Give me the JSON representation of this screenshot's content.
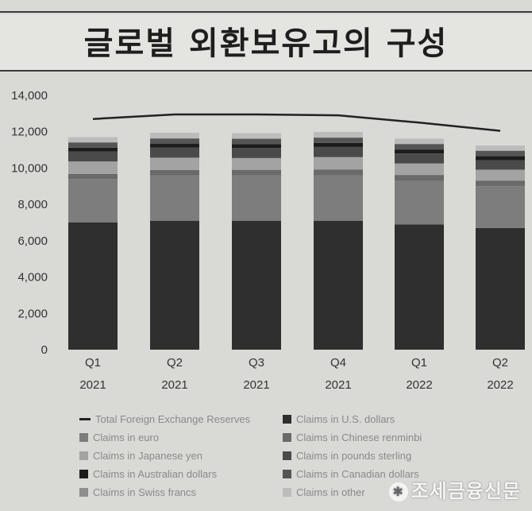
{
  "title": "글로벌 외환보유고의 구성",
  "watermark": "조세금융신문",
  "chart_data": {
    "type": "bar",
    "stacked": true,
    "categories": [
      {
        "quarter": "Q1",
        "year": "2021"
      },
      {
        "quarter": "Q2",
        "year": "2021"
      },
      {
        "quarter": "Q3",
        "year": "2021"
      },
      {
        "quarter": "Q4",
        "year": "2021"
      },
      {
        "quarter": "Q1",
        "year": "2022"
      },
      {
        "quarter": "Q2",
        "year": "2022"
      }
    ],
    "yticks": [
      "0",
      "2,000",
      "4,000",
      "6,000",
      "8,000",
      "10,000",
      "12,000",
      "14,000"
    ],
    "ylim": [
      0,
      14000
    ],
    "grid": false,
    "legend_position": "bottom",
    "series": [
      {
        "name": "Claims in U.S. dollars",
        "color": "#2f2f2f",
        "values": [
          7000,
          7100,
          7100,
          7100,
          6900,
          6700
        ]
      },
      {
        "name": "Claims in euro",
        "color": "#7d7d7d",
        "values": [
          2400,
          2500,
          2500,
          2500,
          2400,
          2300
        ]
      },
      {
        "name": "Claims in Chinese renminbi",
        "color": "#6a6a6a",
        "values": [
          270,
          290,
          300,
          320,
          320,
          310
        ]
      },
      {
        "name": "Claims in Japanese yen",
        "color": "#a3a3a3",
        "values": [
          690,
          680,
          650,
          680,
          630,
          600
        ]
      },
      {
        "name": "Claims in pounds sterling",
        "color": "#4a4a4a",
        "values": [
          550,
          550,
          560,
          560,
          550,
          520
        ]
      },
      {
        "name": "Claims in Australian dollars",
        "color": "#1c1c1c",
        "values": [
          210,
          210,
          210,
          220,
          220,
          220
        ]
      },
      {
        "name": "Claims in Canadian dollars",
        "color": "#555555",
        "values": [
          280,
          290,
          290,
          290,
          290,
          290
        ]
      },
      {
        "name": "Claims in Swiss francs",
        "color": "#8e8e8e",
        "values": [
          20,
          20,
          20,
          20,
          20,
          20
        ]
      },
      {
        "name": "Claims in other",
        "color": "#bcbcbc",
        "values": [
          280,
          300,
          290,
          300,
          290,
          280
        ]
      }
    ],
    "line_series": {
      "name": "Total Foreign Exchange Reserves",
      "color": "#222222",
      "values": [
        12700,
        12950,
        12950,
        12900,
        12500,
        12050
      ]
    }
  },
  "legend": [
    {
      "label": "Total Foreign Exchange Reserves",
      "kind": "line",
      "color": "#222222"
    },
    {
      "label": "Claims in U.S. dollars",
      "kind": "box",
      "color": "#2f2f2f"
    },
    {
      "label": "Claims in euro",
      "kind": "box",
      "color": "#7d7d7d"
    },
    {
      "label": "Claims in Chinese renminbi",
      "kind": "box",
      "color": "#6a6a6a"
    },
    {
      "label": "Claims in Japanese yen",
      "kind": "box",
      "color": "#a3a3a3"
    },
    {
      "label": "Claims in pounds sterling",
      "kind": "box",
      "color": "#4a4a4a"
    },
    {
      "label": "Claims in Australian dollars",
      "kind": "box",
      "color": "#1c1c1c"
    },
    {
      "label": "Claims in Canadian dollars",
      "kind": "box",
      "color": "#555555"
    },
    {
      "label": "Claims in Swiss francs",
      "kind": "box",
      "color": "#8e8e8e"
    },
    {
      "label": "Claims in other",
      "kind": "box",
      "color": "#bcbcbc"
    }
  ]
}
